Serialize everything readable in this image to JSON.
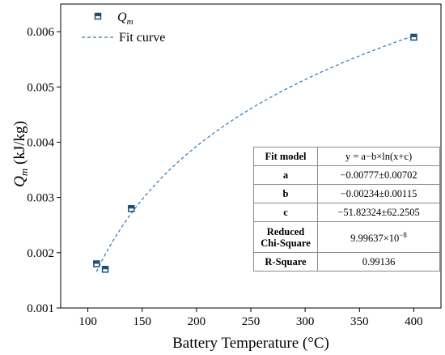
{
  "chart_data": {
    "type": "scatter",
    "xlabel": "Battery Temperature (°C)",
    "ylabel": {
      "main": "Q",
      "sub": "m",
      "unit": " (kJ/kg)"
    },
    "xlim": [
      75,
      425
    ],
    "ylim": [
      0.001,
      0.0065
    ],
    "xticks": [
      100,
      150,
      200,
      250,
      300,
      350,
      400
    ],
    "yticks": [
      0.001,
      0.002,
      0.003,
      0.004,
      0.005,
      0.006
    ],
    "grid": false,
    "legend_position": "top-left",
    "series": [
      {
        "name": "Qm",
        "kind": "scatter",
        "marker": "half-filled-square",
        "color": "#1f4e79",
        "x": [
          108,
          116,
          140,
          400
        ],
        "y": [
          0.0018,
          0.0017,
          0.0028,
          0.0059
        ]
      },
      {
        "name": "Fit curve",
        "kind": "line",
        "style": "dashed",
        "color": "#2e75b6",
        "model": {
          "a": -0.00777,
          "b": -0.00234,
          "c": -51.82324
        },
        "x_range": [
          108,
          400
        ]
      }
    ],
    "legend": [
      {
        "label_main": "Q",
        "label_sub": "m"
      },
      {
        "label": "Fit curve"
      }
    ]
  },
  "fit_table": {
    "header": {
      "param": "Fit model",
      "value": "y = a−b×ln(x+c)"
    },
    "rows": [
      {
        "param": "a",
        "value": "−0.00777±0.00702"
      },
      {
        "param": "b",
        "value": "−0.00234±0.00115"
      },
      {
        "param": "c",
        "value": "−51.82324±62.2505"
      },
      {
        "param_line1": "Reduced",
        "param_line2": "Chi-Square",
        "value_base": "9.99637×10",
        "value_exp": "−8"
      },
      {
        "param": "R-Square",
        "value": "0.99136"
      }
    ]
  }
}
